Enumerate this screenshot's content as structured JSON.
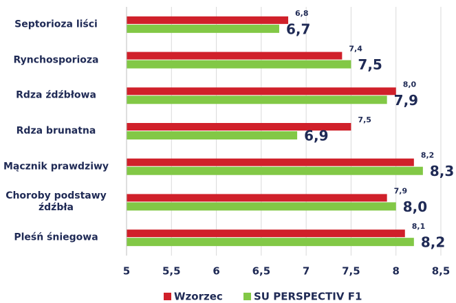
{
  "chart_data": {
    "type": "bar",
    "orientation": "horizontal",
    "categories": [
      "Septorioza liści",
      "Rynchosporioza",
      "Rdza źdźbłowa",
      "Rdza brunatna",
      "Mącznik prawdziwy",
      "Choroby podstawy\nźdźbła",
      "Pleśń śniegowa"
    ],
    "series": [
      {
        "name": "Wzorzec",
        "color": "#d0202a",
        "values": [
          6.8,
          7.4,
          8.0,
          7.5,
          8.2,
          7.9,
          8.1
        ],
        "value_labels": [
          "6,8",
          "7,4",
          "8,0",
          "7,5",
          "8,2",
          "7,9",
          "8,1"
        ]
      },
      {
        "name": "SU PERSPECTIV F1",
        "color": "#82c846",
        "values": [
          6.7,
          7.5,
          7.9,
          6.9,
          8.3,
          8.0,
          8.2
        ],
        "value_labels": [
          "6,7",
          "7,5",
          "7,9",
          "6,9",
          "8,3",
          "8,0",
          "8,2"
        ]
      }
    ],
    "xlim": [
      5,
      8.5
    ],
    "xticks": [
      5,
      {
        "value": 5.5,
        "label": "5,5"
      },
      6,
      {
        "value": 6.5,
        "label": "6,5"
      },
      7,
      {
        "value": 7.5,
        "label": "7,5"
      },
      8,
      {
        "value": 8.5,
        "label": "8,5"
      }
    ],
    "grid": true,
    "legend": "bottom"
  }
}
